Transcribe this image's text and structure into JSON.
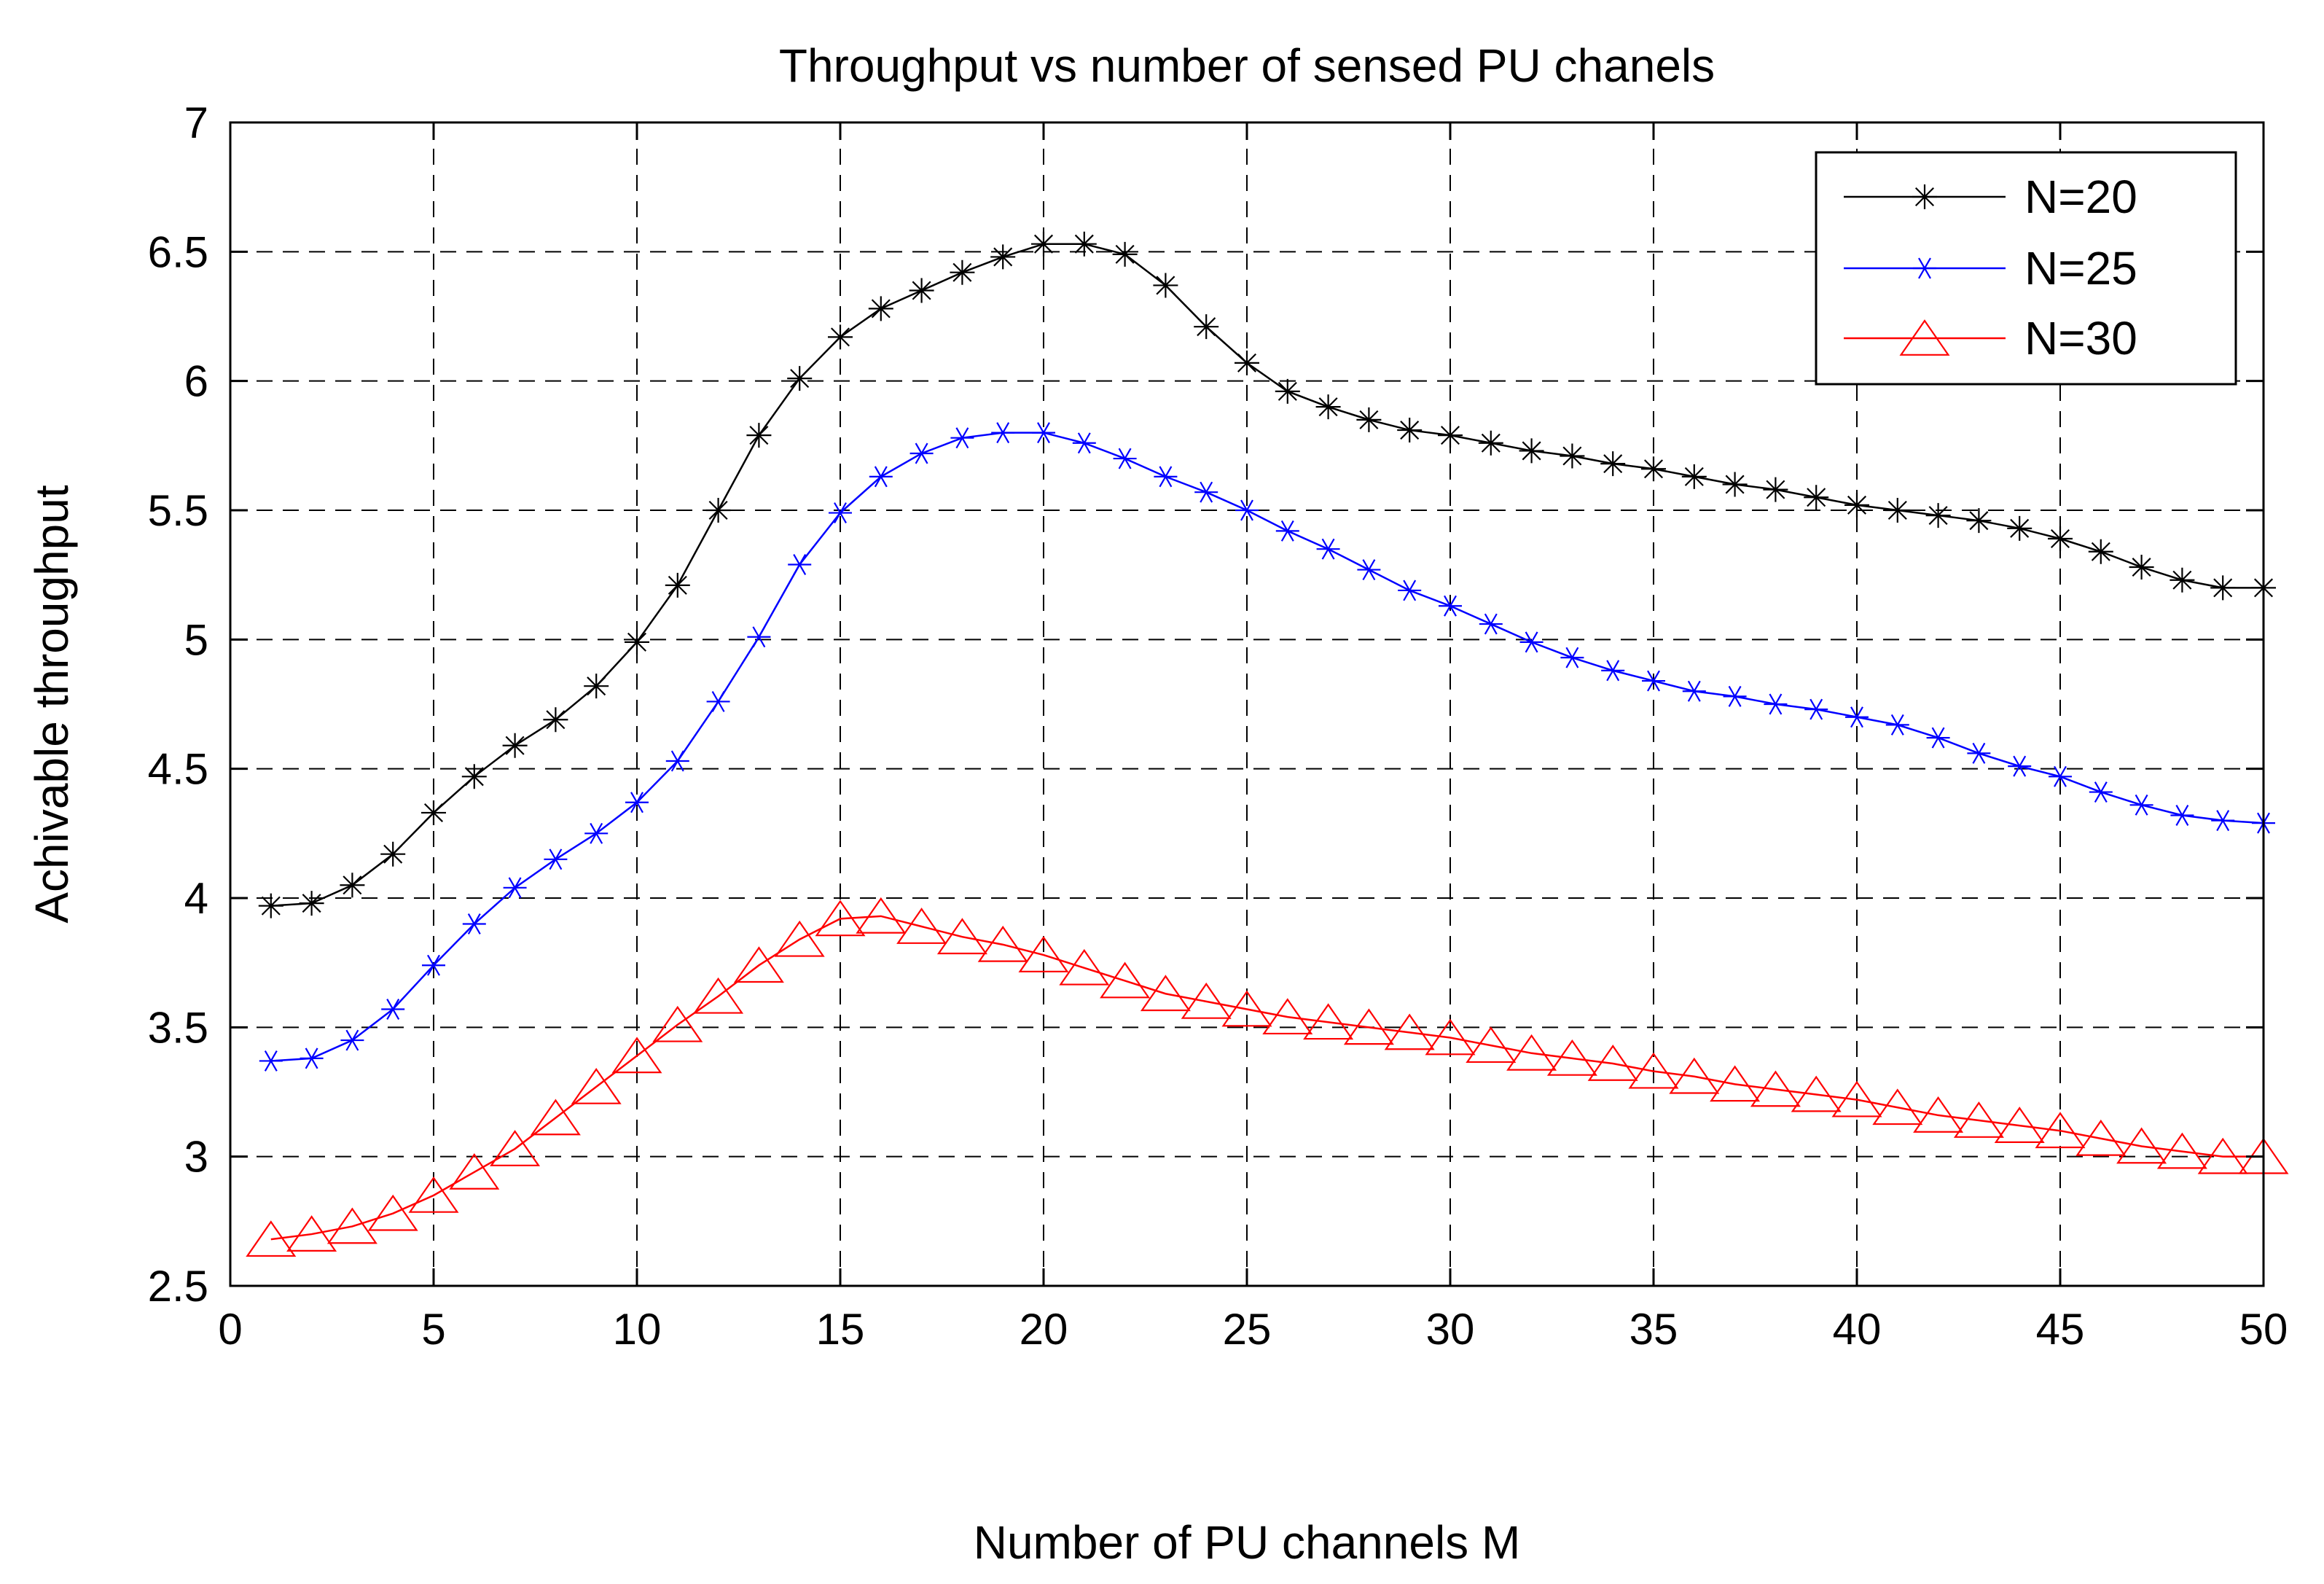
{
  "chart_data": {
    "type": "line",
    "title": "Throughput vs number of sensed PU chanels",
    "xlabel": "Number of PU channels M",
    "ylabel": "Achivable throughput",
    "xlim": [
      0,
      50
    ],
    "ylim": [
      2.5,
      7
    ],
    "xticks": [
      "0",
      "5",
      "10",
      "15",
      "20",
      "25",
      "30",
      "35",
      "40",
      "45",
      "50"
    ],
    "yticks": [
      "2.5",
      "3",
      "3.5",
      "4",
      "4.5",
      "5",
      "5.5",
      "6",
      "6.5",
      "7"
    ],
    "grid": true,
    "legend_position": "top-right",
    "x": [
      1,
      2,
      3,
      4,
      5,
      6,
      7,
      8,
      9,
      10,
      11,
      12,
      13,
      14,
      15,
      16,
      17,
      18,
      19,
      20,
      21,
      22,
      23,
      24,
      25,
      26,
      27,
      28,
      29,
      30,
      31,
      32,
      33,
      34,
      35,
      36,
      37,
      38,
      39,
      40,
      41,
      42,
      43,
      44,
      45,
      46,
      47,
      48,
      49,
      50
    ],
    "series": [
      {
        "name": "N=20",
        "color": "#000000",
        "marker": "star",
        "values": [
          3.97,
          3.98,
          4.05,
          4.17,
          4.33,
          4.47,
          4.59,
          4.69,
          4.82,
          4.99,
          5.21,
          5.5,
          5.79,
          6.01,
          6.17,
          6.28,
          6.35,
          6.42,
          6.48,
          6.53,
          6.53,
          6.49,
          6.37,
          6.21,
          6.07,
          5.96,
          5.9,
          5.85,
          5.81,
          5.79,
          5.76,
          5.73,
          5.71,
          5.68,
          5.66,
          5.63,
          5.6,
          5.58,
          5.55,
          5.52,
          5.5,
          5.48,
          5.46,
          5.43,
          5.39,
          5.34,
          5.28,
          5.23,
          5.2,
          5.2
        ]
      },
      {
        "name": "N=25",
        "color": "#0000ff",
        "marker": "asterisk",
        "values": [
          3.37,
          3.38,
          3.45,
          3.57,
          3.74,
          3.9,
          4.04,
          4.15,
          4.25,
          4.37,
          4.53,
          4.76,
          5.01,
          5.29,
          5.49,
          5.63,
          5.72,
          5.78,
          5.8,
          5.8,
          5.76,
          5.7,
          5.63,
          5.57,
          5.5,
          5.42,
          5.35,
          5.27,
          5.19,
          5.13,
          5.06,
          4.99,
          4.93,
          4.88,
          4.84,
          4.8,
          4.78,
          4.75,
          4.73,
          4.7,
          4.67,
          4.62,
          4.56,
          4.51,
          4.47,
          4.41,
          4.36,
          4.32,
          4.3,
          4.29
        ]
      },
      {
        "name": "N=30",
        "color": "#ff0000",
        "marker": "triangle",
        "values": [
          2.68,
          2.7,
          2.73,
          2.78,
          2.85,
          2.94,
          3.03,
          3.15,
          3.27,
          3.39,
          3.51,
          3.62,
          3.74,
          3.84,
          3.92,
          3.93,
          3.89,
          3.85,
          3.82,
          3.78,
          3.73,
          3.68,
          3.63,
          3.6,
          3.57,
          3.54,
          3.52,
          3.5,
          3.48,
          3.46,
          3.43,
          3.4,
          3.38,
          3.36,
          3.33,
          3.31,
          3.28,
          3.26,
          3.24,
          3.22,
          3.19,
          3.16,
          3.14,
          3.12,
          3.1,
          3.07,
          3.04,
          3.02,
          3.0,
          3.0
        ]
      }
    ]
  }
}
